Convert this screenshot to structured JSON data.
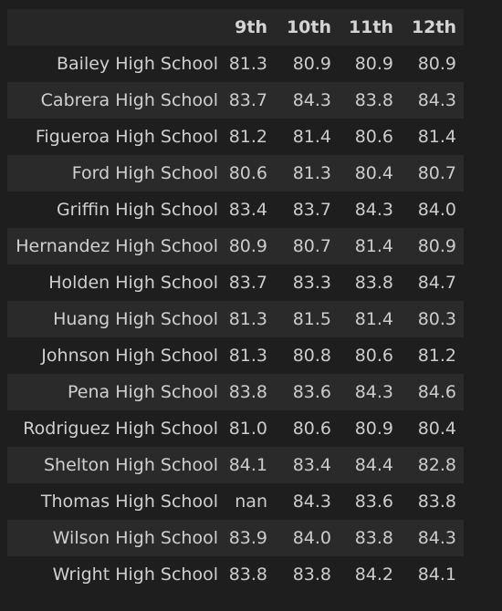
{
  "table": {
    "columns": [
      "9th",
      "10th",
      "11th",
      "12th"
    ],
    "rows": [
      {
        "school": "Bailey High School",
        "values": [
          "81.3",
          "80.9",
          "80.9",
          "80.9"
        ]
      },
      {
        "school": "Cabrera High School",
        "values": [
          "83.7",
          "84.3",
          "83.8",
          "84.3"
        ]
      },
      {
        "school": "Figueroa High School",
        "values": [
          "81.2",
          "81.4",
          "80.6",
          "81.4"
        ]
      },
      {
        "school": "Ford High School",
        "values": [
          "80.6",
          "81.3",
          "80.4",
          "80.7"
        ]
      },
      {
        "school": "Griffin High School",
        "values": [
          "83.4",
          "83.7",
          "84.3",
          "84.0"
        ]
      },
      {
        "school": "Hernandez High School",
        "values": [
          "80.9",
          "80.7",
          "81.4",
          "80.9"
        ]
      },
      {
        "school": "Holden High School",
        "values": [
          "83.7",
          "83.3",
          "83.8",
          "84.7"
        ]
      },
      {
        "school": "Huang High School",
        "values": [
          "81.3",
          "81.5",
          "81.4",
          "80.3"
        ]
      },
      {
        "school": "Johnson High School",
        "values": [
          "81.3",
          "80.8",
          "80.6",
          "81.2"
        ]
      },
      {
        "school": "Pena High School",
        "values": [
          "83.8",
          "83.6",
          "84.3",
          "84.6"
        ]
      },
      {
        "school": "Rodriguez High School",
        "values": [
          "81.0",
          "80.6",
          "80.9",
          "80.4"
        ]
      },
      {
        "school": "Shelton High School",
        "values": [
          "84.1",
          "83.4",
          "84.4",
          "82.8"
        ]
      },
      {
        "school": "Thomas High School",
        "values": [
          "nan",
          "84.3",
          "83.6",
          "83.8"
        ]
      },
      {
        "school": "Wilson High School",
        "values": [
          "83.9",
          "84.0",
          "83.8",
          "84.3"
        ]
      },
      {
        "school": "Wright High School",
        "values": [
          "83.8",
          "83.8",
          "84.2",
          "84.1"
        ]
      }
    ]
  },
  "colors": {
    "background": "#1e1e1e",
    "header_row": "#272727",
    "stripe_row": "#2a2a2a",
    "text": "#cccccc"
  }
}
